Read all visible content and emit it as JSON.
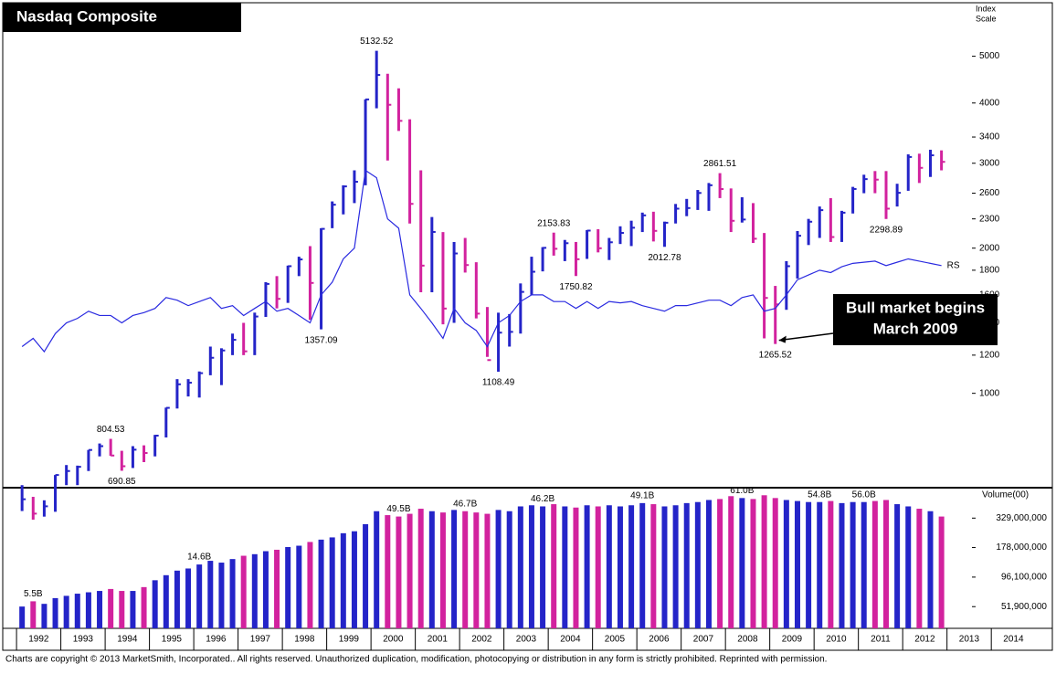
{
  "chart_data": {
    "type": "ohlc",
    "title": "Nasdaq Composite",
    "y_axis_label": [
      "Index",
      "Scale"
    ],
    "log_scale": true,
    "up_color": "#2424c8",
    "down_color": "#d2229e",
    "x": [
      1992.125,
      1992.375,
      1992.625,
      1992.875,
      1993.125,
      1993.375,
      1993.625,
      1993.875,
      1994.125,
      1994.375,
      1994.625,
      1994.875,
      1995.125,
      1995.375,
      1995.625,
      1995.875,
      1996.125,
      1996.375,
      1996.625,
      1996.875,
      1997.125,
      1997.375,
      1997.625,
      1997.875,
      1998.125,
      1998.375,
      1998.625,
      1998.875,
      1999.125,
      1999.375,
      1999.625,
      1999.875,
      2000.125,
      2000.375,
      2000.625,
      2000.875,
      2001.125,
      2001.375,
      2001.625,
      2001.875,
      2002.125,
      2002.375,
      2002.625,
      2002.875,
      2003.125,
      2003.375,
      2003.625,
      2003.875,
      2004.125,
      2004.375,
      2004.625,
      2004.875,
      2005.125,
      2005.375,
      2005.625,
      2005.875,
      2006.125,
      2006.375,
      2006.625,
      2006.875,
      2007.125,
      2007.375,
      2007.625,
      2007.875,
      2008.125,
      2008.375,
      2008.625,
      2008.875,
      2009.125,
      2009.375,
      2009.625,
      2009.875,
      2010.125,
      2010.375,
      2010.625,
      2010.875,
      2011.125,
      2011.375,
      2011.625,
      2011.875,
      2012.125,
      2012.375,
      2012.625,
      2012.875
    ],
    "high": [
      645,
      610,
      600,
      677,
      710,
      708,
      763,
      787,
      804.53,
      760,
      777,
      780,
      820,
      934,
      1070,
      1070,
      1110,
      1250,
      1240,
      1330,
      1400,
      1470,
      1700,
      1750,
      1840,
      1920,
      2020,
      2200,
      2500,
      2700,
      2900,
      4070,
      5132.52,
      4600,
      4290,
      3700,
      2900,
      2320,
      2160,
      2060,
      2100,
      1870,
      1510,
      1470,
      1460,
      1690,
      1920,
      2010,
      2153.83,
      2080,
      2060,
      2180,
      2190,
      2100,
      2220,
      2280,
      2370,
      2380,
      2270,
      2470,
      2530,
      2640,
      2730,
      2861.51,
      2660,
      2550,
      2480,
      2150,
      1670,
      1880,
      2170,
      2300,
      2440,
      2540,
      2390,
      2680,
      2840,
      2890,
      2890,
      2720,
      3130,
      3140,
      3200,
      3190
    ],
    "low": [
      570,
      547,
      555,
      568,
      645,
      645,
      690,
      740,
      742,
      690.85,
      700,
      720,
      740,
      810,
      930,
      985,
      980,
      1090,
      1040,
      1200,
      1200,
      1200,
      1440,
      1500,
      1540,
      1750,
      1420,
      1357.09,
      2200,
      2350,
      2480,
      2700,
      3900,
      3040,
      3500,
      2250,
      1620,
      1620,
      1390,
      1400,
      1780,
      1430,
      1190,
      1108.49,
      1250,
      1330,
      1600,
      1790,
      1930,
      1880,
      1750.82,
      1900,
      1960,
      1890,
      2040,
      2020,
      2160,
      2065,
      2012.78,
      2250,
      2330,
      2400,
      2390,
      2540,
      2160,
      2260,
      2050,
      1300,
      1265.52,
      1490,
      1730,
      2030,
      2100,
      2060,
      2060,
      2360,
      2600,
      2600,
      2298.89,
      2440,
      2630,
      2730,
      2810,
      2900
    ],
    "close": [
      603,
      563,
      583,
      677,
      690,
      704,
      763,
      777,
      743,
      706,
      764,
      752,
      817,
      933,
      1044,
      1052,
      1101,
      1185,
      1227,
      1291,
      1222,
      1443,
      1686,
      1570,
      1835,
      1895,
      1694,
      2193,
      2461,
      2686,
      2746,
      4069,
      4573,
      3966,
      3673,
      2471,
      1840,
      2161,
      1499,
      1950,
      1845,
      1463,
      1172,
      1336,
      1341,
      1623,
      1787,
      2003,
      1994,
      2048,
      1897,
      2175,
      1999,
      2057,
      2151,
      2205,
      2339,
      2172,
      2258,
      2415,
      2422,
      2603,
      2701,
      2652,
      2279,
      2293,
      2092,
      1577,
      1529,
      1835,
      2122,
      2269,
      2398,
      2109,
      2369,
      2653,
      2781,
      2774,
      2415,
      2605,
      3091,
      2935,
      3116,
      3020
    ],
    "rs": {
      "name": "RS",
      "color": "#2a2ae0",
      "values": [
        1250,
        1300,
        1220,
        1330,
        1400,
        1430,
        1480,
        1450,
        1450,
        1400,
        1450,
        1470,
        1500,
        1580,
        1560,
        1520,
        1550,
        1580,
        1500,
        1520,
        1450,
        1500,
        1550,
        1480,
        1500,
        1450,
        1400,
        1600,
        1700,
        1900,
        2000,
        2900,
        2800,
        2300,
        2200,
        1600,
        1500,
        1400,
        1300,
        1500,
        1400,
        1350,
        1250,
        1400,
        1450,
        1550,
        1600,
        1600,
        1550,
        1550,
        1500,
        1550,
        1500,
        1550,
        1540,
        1550,
        1520,
        1500,
        1480,
        1520,
        1520,
        1540,
        1560,
        1560,
        1520,
        1580,
        1600,
        1480,
        1500,
        1600,
        1720,
        1760,
        1800,
        1780,
        1830,
        1860,
        1870,
        1880,
        1840,
        1870,
        1900,
        1880,
        1860,
        1840
      ]
    },
    "ylim": [
      640,
      6400
    ],
    "yticks": [
      1000,
      1200,
      1400,
      1600,
      1800,
      2000,
      2300,
      2600,
      3000,
      3400,
      4000,
      5000
    ],
    "xlim": [
      1991.73,
      2015.46
    ],
    "xticks": [
      1992,
      1993,
      1994,
      1995,
      1996,
      1997,
      1998,
      1999,
      2000,
      2001,
      2002,
      2003,
      2004,
      2005,
      2006,
      2007,
      2008,
      2009,
      2010,
      2011,
      2012,
      2013,
      2014
    ],
    "annotations": [
      {
        "x": 2000.125,
        "value": 5132.52,
        "label": "5132.52"
      },
      {
        "x": 1994.125,
        "value": 804.53,
        "label": "804.53"
      },
      {
        "x": 1994.375,
        "value": 690.85,
        "label": "690.85"
      },
      {
        "x": 1998.875,
        "value": 1357.09,
        "label": "1357.09"
      },
      {
        "x": 2002.875,
        "value": 1108.49,
        "label": "1108.49"
      },
      {
        "x": 2004.125,
        "value": 2153.83,
        "label": "2153.83"
      },
      {
        "x": 2004.625,
        "value": 1750.82,
        "label": "1750.82"
      },
      {
        "x": 2006.625,
        "value": 2012.78,
        "label": "2012.78"
      },
      {
        "x": 2007.875,
        "value": 2861.51,
        "label": "2861.51"
      },
      {
        "x": 2009.125,
        "value": 1265.52,
        "label": "1265.52"
      },
      {
        "x": 2011.625,
        "value": 2298.89,
        "label": "2298.89"
      }
    ],
    "callout": [
      "Bull market begins",
      "March 2009"
    ],
    "volume": {
      "label": "Volume(00)",
      "values": [
        52000000,
        58000000,
        55000000,
        62000000,
        65000000,
        68000000,
        70000000,
        72000000,
        75000000,
        72000000,
        72000000,
        78000000,
        90000000,
        100000000,
        110000000,
        115000000,
        125000000,
        135000000,
        130000000,
        140000000,
        150000000,
        155000000,
        165000000,
        170000000,
        180000000,
        185000000,
        200000000,
        210000000,
        220000000,
        240000000,
        250000000,
        290000000,
        380000000,
        350000000,
        340000000,
        360000000,
        400000000,
        380000000,
        370000000,
        390000000,
        380000000,
        370000000,
        360000000,
        390000000,
        380000000,
        420000000,
        430000000,
        420000000,
        440000000,
        420000000,
        410000000,
        430000000,
        420000000,
        430000000,
        420000000,
        430000000,
        450000000,
        440000000,
        420000000,
        430000000,
        450000000,
        460000000,
        480000000,
        490000000,
        520000000,
        500000000,
        490000000,
        530000000,
        500000000,
        480000000,
        470000000,
        460000000,
        460000000,
        470000000,
        450000000,
        460000000,
        460000000,
        470000000,
        480000000,
        440000000,
        420000000,
        400000000,
        380000000,
        340000000
      ],
      "ylim": [
        33000000,
        575000000
      ],
      "yticks": [
        {
          "value": 51900000,
          "label": "51,900,000"
        },
        {
          "value": 96100000,
          "label": "96,100,000"
        },
        {
          "value": 178000000,
          "label": "178,000,000"
        },
        {
          "value": 329000000,
          "label": "329,000,000"
        }
      ],
      "annotations": [
        {
          "x": 1992.375,
          "label": "5.5B"
        },
        {
          "x": 1996.125,
          "label": "14.6B"
        },
        {
          "x": 2000.625,
          "label": "49.5B"
        },
        {
          "x": 2002.125,
          "label": "46.7B"
        },
        {
          "x": 2003.875,
          "label": "46.2B"
        },
        {
          "x": 2006.125,
          "label": "49.1B"
        },
        {
          "x": 2008.375,
          "label": "61.0B"
        },
        {
          "x": 2010.125,
          "label": "54.8B"
        },
        {
          "x": 2011.125,
          "label": "56.0B"
        }
      ]
    },
    "footer": "Charts are copyright © 2013 MarketSmith, Incorporated..  All rights reserved.  Unauthorized duplication, modification, photocopying or distribution in any form is strictly prohibited. Reprinted with permission."
  }
}
